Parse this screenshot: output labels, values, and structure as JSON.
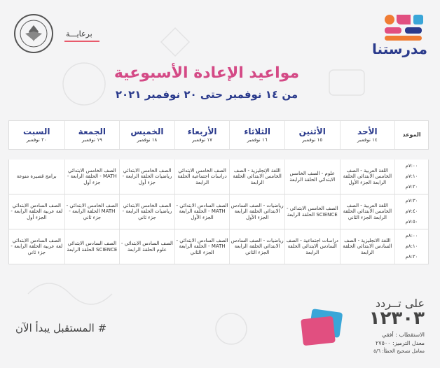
{
  "brand": {
    "name": "مدرستنا",
    "colors": [
      "#f07c33",
      "#e14f80",
      "#2a3a8c",
      "#3aa6d8"
    ]
  },
  "sponsor": {
    "label": "برعايـــة"
  },
  "header": {
    "title": "مواعيد الإعادة الأسبوعية",
    "subtitle": "من ١٤ نوفمبر حتى ٢٠ نوفمبر ٢٠٢١"
  },
  "schedule": {
    "time_header": "الموعد",
    "days": [
      {
        "name": "الأحد",
        "date": "١٤ نوفمبر"
      },
      {
        "name": "الأثنين",
        "date": "١٥ نوفمبر"
      },
      {
        "name": "الثلاثاء",
        "date": "١٦ نوفمبر"
      },
      {
        "name": "الأربعاء",
        "date": "١٧ نوفمبر"
      },
      {
        "name": "الخميس",
        "date": "١٨ نوفمبر"
      },
      {
        "name": "الجمعة",
        "date": "١٩ نوفمبر"
      },
      {
        "name": "السبت",
        "date": "٢٠ نوفمبر"
      }
    ],
    "blocks": [
      {
        "times": [
          "٧:٠٠م",
          "٧:١٠م",
          "٧:٢٠م"
        ],
        "cells": [
          "اللغة العربية - الصف الخامس الابتدائي الحلقة الرابعة الجزء الأول",
          "علوم - الصف الخامس الابتدائي الحلقة الرابعة",
          "اللغة الإنجليزية - الصف الخامس الابتدائي الحلقة الرابعة",
          "الصف الخامس الابتدائي دراسات اجتماعية الحلقة الرابعة",
          "الصف الخامس الابتدائي رياضيات الحلقة الرابعة - جزء أول",
          "الصف الخامس الابتدائي MATH - الحلقة الرابعة - جزء أول",
          "برامج قصيرة منوعة"
        ]
      },
      {
        "times": [
          "٧:٣٠م",
          "٧:٤٠م",
          "٧:٥٠م"
        ],
        "cells": [
          "اللغة العربية - الصف الخامس الابتدائي الحلقة الرابعة الجزء الثاني",
          "الصف الخامس الابتدائي - SCIENCE الحلقة الرابعة",
          "رياضيات - الصف السادس الابتدائي الحلقة الرابعة الجزء الأول",
          "الصف السادس الابتدائي - MATH - الحلقة الرابعة الجزء الأول",
          "الصف الخامس الابتدائي رياضيات الحلقة الرابعة - جزء ثاني",
          "الصف الخامس الابتدائي - MATH الحلقة الرابعة - جزء ثاني",
          "الصف السادس الابتدائي لغة عربية الحلقة الرابعة - الجزء أول"
        ]
      },
      {
        "times": [
          "٨:٠٠م",
          "٨:١٠م",
          "٨:٢٠م"
        ],
        "cells": [
          "اللغة الانجليزية - الصف السادس الابتدائي الحلقة الرابعة",
          "دراسات اجتماعية - الصف السادس الابتدائي الحلقة الرابعة",
          "رياضيات - الصف السادس الابتدائي الحلقة الرابعة الجزء الثاني",
          "الصف السادس الابتدائي - MATH - الحلقة الرابعة الجزء الثاني",
          "الصف السادس الابتدائي - علوم الحلقة الرابعة",
          "الصف السادس الابتدائي SCIENCE الحلقة الرابعة",
          "الصف السادس الابتدائي لغة عربية الحلقة الرابعة - جزء ثاني"
        ]
      }
    ]
  },
  "footer": {
    "tagline": "# المستقبل يبدأ الآن",
    "freq_on": "على تــردد",
    "freq_number": "١٢٣٠٣",
    "polarization": "الاستقطاب : أفقي",
    "symbol_rate": "معدل الترميز: ٢٧٥٠٠",
    "fec": "معامل تصحيح الخطأ: ٥/٦"
  }
}
